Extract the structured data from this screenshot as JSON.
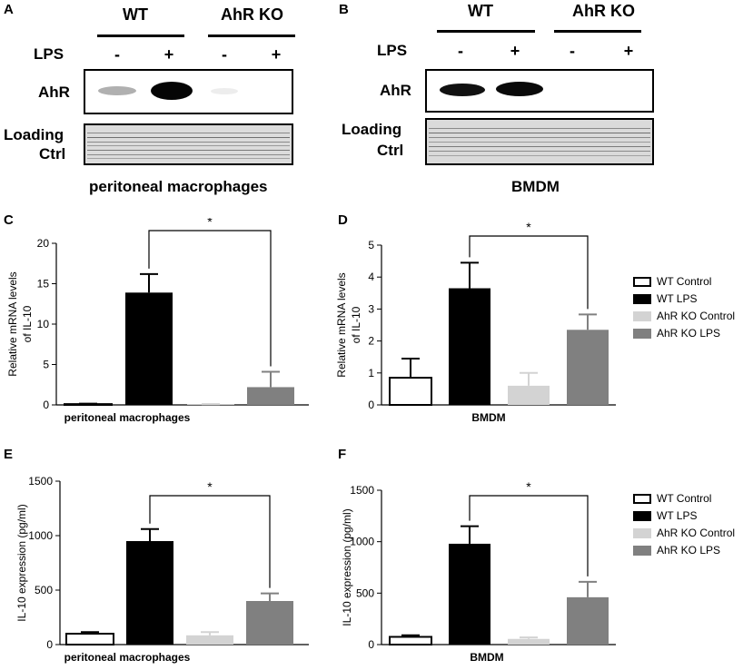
{
  "panels": {
    "A": {
      "letter": "A",
      "group1": "WT",
      "group2": "AhR KO",
      "treatment_label": "LPS",
      "lanes": [
        "-",
        "+",
        "-",
        "+"
      ],
      "target_label": "AhR",
      "loading_label_1": "Loading",
      "loading_label_2": "Ctrl",
      "caption": "peritoneal macrophages"
    },
    "B": {
      "letter": "B",
      "group1": "WT",
      "group2": "AhR KO",
      "treatment_label": "LPS",
      "lanes": [
        "-",
        "+",
        "-",
        "+"
      ],
      "target_label": "AhR",
      "loading_label_1": "Loading",
      "loading_label_2": "Ctrl",
      "caption": "BMDM"
    }
  },
  "letters": {
    "C": "C",
    "D": "D",
    "E": "E",
    "F": "F"
  },
  "legend": {
    "entries": [
      {
        "label": "WT Control",
        "fill": "#ffffff"
      },
      {
        "label": "WT LPS",
        "fill": "#000000"
      },
      {
        "label": "AhR KO Control",
        "fill": "#d3d3d3"
      },
      {
        "label": "AhR KO LPS",
        "fill": "#808080"
      }
    ]
  },
  "colors": {
    "bars": [
      "#ffffff",
      "#000000",
      "#d3d3d3",
      "#808080"
    ],
    "bar_stroke": "#000000"
  },
  "chart_data": [
    {
      "id": "C",
      "type": "bar",
      "categories": [
        "WT Control",
        "WT LPS",
        "AhR KO Control",
        "AhR KO LPS"
      ],
      "values": [
        0.1,
        13.9,
        0.05,
        2.2
      ],
      "errors": [
        0.05,
        2.3,
        0.05,
        1.9
      ],
      "xlabel": "peritoneal macrophages",
      "ylabel": [
        "Relative mRNA levels",
        "of IL-10"
      ],
      "ylim": [
        0,
        20
      ],
      "yticks": [
        0,
        5,
        10,
        15,
        20
      ],
      "significance": {
        "from": 1,
        "to": 3,
        "label": "*"
      }
    },
    {
      "id": "D",
      "type": "bar",
      "categories": [
        "WT Control",
        "WT LPS",
        "AhR KO Control",
        "AhR KO LPS"
      ],
      "values": [
        0.85,
        3.65,
        0.6,
        2.35
      ],
      "errors": [
        0.6,
        0.8,
        0.4,
        0.48
      ],
      "xlabel": "BMDM",
      "ylabel": [
        "Relative mRNA levels",
        "of IL-10"
      ],
      "ylim": [
        0,
        5
      ],
      "yticks": [
        0,
        1,
        2,
        3,
        4,
        5
      ],
      "significance": {
        "from": 1,
        "to": 3,
        "label": "*"
      }
    },
    {
      "id": "E",
      "type": "bar",
      "categories": [
        "WT Control",
        "WT LPS",
        "AhR KO Control",
        "AhR KO LPS"
      ],
      "values": [
        100,
        950,
        85,
        400
      ],
      "errors": [
        15,
        110,
        30,
        70
      ],
      "xlabel": "peritoneal macrophages",
      "ylabel": [
        "IL-10 expression (pg/ml)"
      ],
      "ylim": [
        0,
        1500
      ],
      "yticks": [
        0,
        500,
        1000,
        1500
      ],
      "significance": {
        "from": 1,
        "to": 3,
        "label": "*"
      }
    },
    {
      "id": "F",
      "type": "bar",
      "categories": [
        "WT Control",
        "WT LPS",
        "AhR KO Control",
        "AhR KO LPS"
      ],
      "values": [
        75,
        980,
        55,
        460
      ],
      "errors": [
        15,
        170,
        15,
        150
      ],
      "xlabel": "BMDM",
      "ylabel": [
        "IL-10 expression (pg/ml)"
      ],
      "ylim": [
        0,
        1500
      ],
      "yticks": [
        0,
        500,
        1000,
        1500
      ],
      "significance": {
        "from": 1,
        "to": 3,
        "label": "*"
      }
    }
  ]
}
